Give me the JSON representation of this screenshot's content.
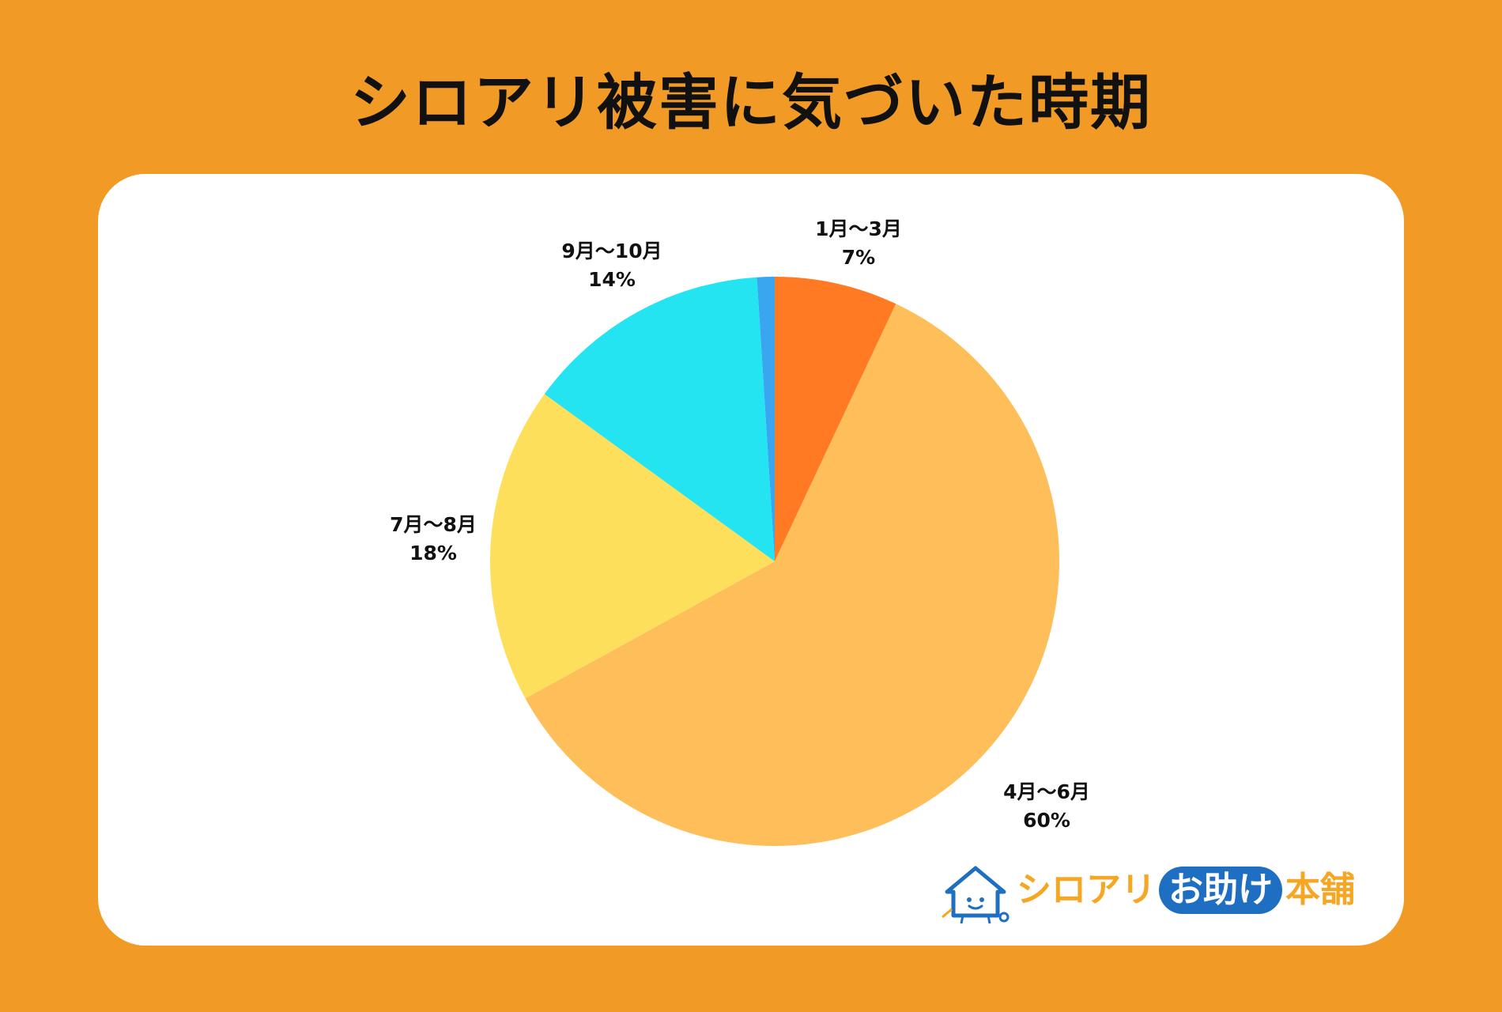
{
  "title": "シロアリ被害に気づいた時期",
  "colors": {
    "background": "#F29A26",
    "card": "#FFFFFF",
    "slices": [
      "#FF7A22",
      "#FEBE5A",
      "#FEDF5C",
      "#24E4F2",
      "#3BA6F0"
    ]
  },
  "chart_data": {
    "type": "pie",
    "categories": [
      "1月〜3月",
      "4月〜6月",
      "7月〜8月",
      "9月〜10月",
      ""
    ],
    "values": [
      7,
      60,
      18,
      14,
      1
    ],
    "labels": [
      {
        "category": "1月〜3月",
        "percent": "7%"
      },
      {
        "category": "4月〜6月",
        "percent": "60%"
      },
      {
        "category": "7月〜8月",
        "percent": "18%"
      },
      {
        "category": "9月〜10月",
        "percent": "14%"
      }
    ],
    "start": "12 o'clock",
    "direction": "clockwise"
  },
  "logo": {
    "icon": "house-mascot-icon",
    "text_a": "シロアリ",
    "text_b": "お助け",
    "text_c": "本舗"
  }
}
